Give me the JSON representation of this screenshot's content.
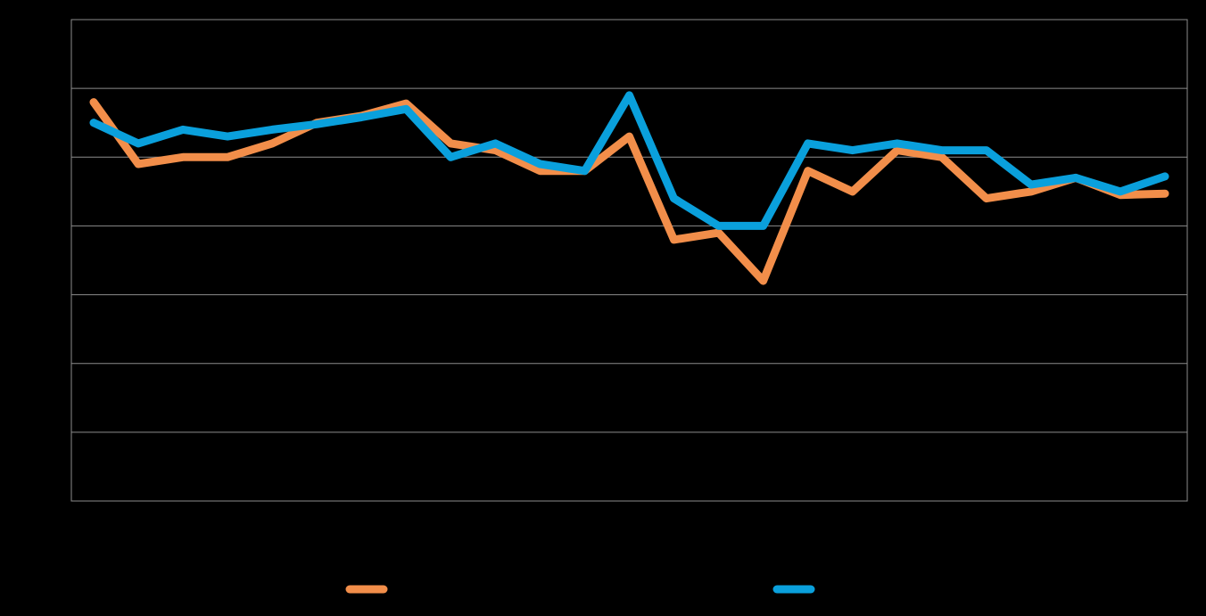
{
  "chart_data": {
    "type": "line",
    "title": "",
    "xlabel": "",
    "ylabel": "",
    "x": [
      1,
      2,
      3,
      4,
      5,
      6,
      7,
      8,
      9,
      10,
      11,
      12,
      13,
      14,
      15,
      16,
      17,
      18,
      19,
      20,
      21,
      22,
      23,
      24,
      25
    ],
    "ylim": [
      0,
      7
    ],
    "grid": true,
    "legend": "bottom",
    "series": [
      {
        "name": "",
        "color": "#F28E4A",
        "values": [
          5.8,
          4.9,
          5.0,
          5.0,
          5.2,
          5.5,
          5.6,
          5.78,
          5.2,
          5.1,
          4.8,
          4.8,
          5.3,
          3.8,
          3.9,
          3.2,
          4.8,
          4.5,
          5.1,
          5.0,
          4.4,
          4.5,
          4.7,
          4.45,
          4.47
        ]
      },
      {
        "name": "",
        "color": "#0AA0DC",
        "values": [
          5.5,
          5.2,
          5.4,
          5.3,
          5.4,
          5.48,
          5.58,
          5.7,
          5.0,
          5.2,
          4.9,
          4.8,
          5.9,
          4.4,
          4.0,
          4.0,
          5.2,
          5.1,
          5.2,
          5.1,
          5.1,
          4.6,
          4.7,
          4.5,
          4.72
        ]
      }
    ]
  }
}
